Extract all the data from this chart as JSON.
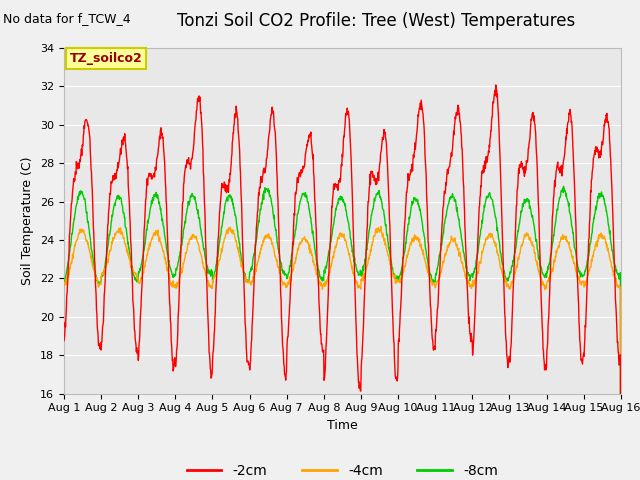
{
  "title": "Tonzi Soil CO2 Profile: Tree (West) Temperatures",
  "subtitle": "No data for f_TCW_4",
  "xlabel": "Time",
  "ylabel": "Soil Temperature (C)",
  "ylim": [
    16,
    34
  ],
  "xlim": [
    0,
    15
  ],
  "xtick_labels": [
    "Aug 1",
    "Aug 2",
    "Aug 3",
    "Aug 4",
    "Aug 5",
    "Aug 6",
    "Aug 7",
    "Aug 8",
    "Aug 9",
    "Aug 10",
    "Aug 11",
    "Aug 12",
    "Aug 13",
    "Aug 14",
    "Aug 15",
    "Aug 16"
  ],
  "ytick_values": [
    16,
    18,
    20,
    22,
    24,
    26,
    28,
    30,
    32,
    34
  ],
  "fig_bg": "#F0F0F0",
  "plot_bg": "#E8E8E8",
  "grid_color": "#FFFFFF",
  "legend_box_facecolor": "#FFFF99",
  "legend_box_edgecolor": "#CCCC00",
  "annotation_text": "TZ_soilco2",
  "title_fontsize": 12,
  "axis_fontsize": 9,
  "tick_fontsize": 8,
  "legend_fontsize": 10,
  "subtitle_fontsize": 9,
  "annotation_fontsize": 9,
  "line_width": 1.0,
  "n_points_per_day": 96,
  "days": 15,
  "red_mean": 25.0,
  "red_amp1": 5.5,
  "red_amp2": 2.5,
  "orange_mean": 23.0,
  "orange_amp": 1.3,
  "green_mean": 24.2,
  "green_amp": 2.2
}
